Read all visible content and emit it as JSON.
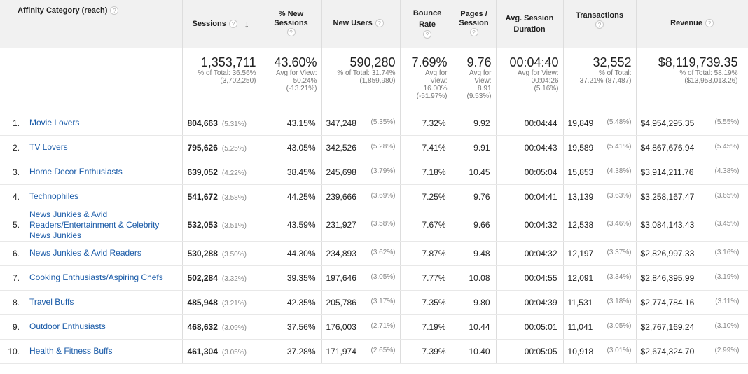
{
  "headers": {
    "category": "Affinity Category (reach)",
    "sessions": "Sessions",
    "new_sessions_pct": "% New Sessions",
    "new_users": "New Users",
    "bounce_rate": "Bounce Rate",
    "pages_session": "Pages / Session",
    "avg_session_duration": "Avg. Session Duration",
    "transactions": "Transactions",
    "revenue": "Revenue",
    "help_glyph": "?",
    "sort_glyph": "↓"
  },
  "totals": {
    "sessions": {
      "value": "1,353,711",
      "sub1": "% of Total: 36.56%",
      "sub2": "(3,702,250)"
    },
    "new_sessions_pct": {
      "value": "43.60%",
      "sub1": "Avg for View:",
      "sub2": "50.24%",
      "sub3": "(-13.21%)"
    },
    "new_users": {
      "value": "590,280",
      "sub1": "% of Total: 31.74%",
      "sub2": "(1,859,980)"
    },
    "bounce_rate": {
      "value": "7.69%",
      "sub1": "Avg for",
      "sub2": "View:",
      "sub3": "16.00%",
      "sub4": "(-51.97%)"
    },
    "pages_session": {
      "value": "9.76",
      "sub1": "Avg for",
      "sub2": "View:",
      "sub3": "8.91",
      "sub4": "(9.53%)"
    },
    "avg_session_duration": {
      "value": "00:04:40",
      "sub1": "Avg for View:",
      "sub2": "00:04:26",
      "sub3": "(5.16%)"
    },
    "transactions": {
      "value": "32,552",
      "sub1": "% of Total:",
      "sub2": "37.21% (87,487)"
    },
    "revenue": {
      "value": "$8,119,739.35",
      "sub1": "% of Total: 58.19%",
      "sub2": "($13,953,013.26)"
    }
  },
  "rows": [
    {
      "idx": "1.",
      "name": "Movie Lovers",
      "sessions": "804,663",
      "sessions_pct": "(5.31%)",
      "new_sessions": "43.15%",
      "new_users": "347,248",
      "new_users_pct": "(5.35%)",
      "bounce": "7.32%",
      "pages": "9.92",
      "duration": "00:04:44",
      "transactions": "19,849",
      "transactions_pct": "(5.48%)",
      "revenue": "$4,954,295.35",
      "revenue_pct": "(5.55%)"
    },
    {
      "idx": "2.",
      "name": "TV Lovers",
      "sessions": "795,626",
      "sessions_pct": "(5.25%)",
      "new_sessions": "43.05%",
      "new_users": "342,526",
      "new_users_pct": "(5.28%)",
      "bounce": "7.41%",
      "pages": "9.91",
      "duration": "00:04:43",
      "transactions": "19,589",
      "transactions_pct": "(5.41%)",
      "revenue": "$4,867,676.94",
      "revenue_pct": "(5.45%)"
    },
    {
      "idx": "3.",
      "name": "Home Decor Enthusiasts",
      "sessions": "639,052",
      "sessions_pct": "(4.22%)",
      "new_sessions": "38.45%",
      "new_users": "245,698",
      "new_users_pct": "(3.79%)",
      "bounce": "7.18%",
      "pages": "10.45",
      "duration": "00:05:04",
      "transactions": "15,853",
      "transactions_pct": "(4.38%)",
      "revenue": "$3,914,211.76",
      "revenue_pct": "(4.38%)"
    },
    {
      "idx": "4.",
      "name": "Technophiles",
      "sessions": "541,672",
      "sessions_pct": "(3.58%)",
      "new_sessions": "44.25%",
      "new_users": "239,666",
      "new_users_pct": "(3.69%)",
      "bounce": "7.25%",
      "pages": "9.76",
      "duration": "00:04:41",
      "transactions": "13,139",
      "transactions_pct": "(3.63%)",
      "revenue": "$3,258,167.47",
      "revenue_pct": "(3.65%)"
    },
    {
      "idx": "5.",
      "name": "News Junkies & Avid Readers/Entertainment & Celebrity News Junkies",
      "sessions": "532,053",
      "sessions_pct": "(3.51%)",
      "new_sessions": "43.59%",
      "new_users": "231,927",
      "new_users_pct": "(3.58%)",
      "bounce": "7.67%",
      "pages": "9.66",
      "duration": "00:04:32",
      "transactions": "12,538",
      "transactions_pct": "(3.46%)",
      "revenue": "$3,084,143.43",
      "revenue_pct": "(3.45%)"
    },
    {
      "idx": "6.",
      "name": "News Junkies & Avid Readers",
      "sessions": "530,288",
      "sessions_pct": "(3.50%)",
      "new_sessions": "44.30%",
      "new_users": "234,893",
      "new_users_pct": "(3.62%)",
      "bounce": "7.87%",
      "pages": "9.48",
      "duration": "00:04:32",
      "transactions": "12,197",
      "transactions_pct": "(3.37%)",
      "revenue": "$2,826,997.33",
      "revenue_pct": "(3.16%)"
    },
    {
      "idx": "7.",
      "name": "Cooking Enthusiasts/Aspiring Chefs",
      "sessions": "502,284",
      "sessions_pct": "(3.32%)",
      "new_sessions": "39.35%",
      "new_users": "197,646",
      "new_users_pct": "(3.05%)",
      "bounce": "7.77%",
      "pages": "10.08",
      "duration": "00:04:55",
      "transactions": "12,091",
      "transactions_pct": "(3.34%)",
      "revenue": "$2,846,395.99",
      "revenue_pct": "(3.19%)"
    },
    {
      "idx": "8.",
      "name": "Travel Buffs",
      "sessions": "485,948",
      "sessions_pct": "(3.21%)",
      "new_sessions": "42.35%",
      "new_users": "205,786",
      "new_users_pct": "(3.17%)",
      "bounce": "7.35%",
      "pages": "9.80",
      "duration": "00:04:39",
      "transactions": "11,531",
      "transactions_pct": "(3.18%)",
      "revenue": "$2,774,784.16",
      "revenue_pct": "(3.11%)"
    },
    {
      "idx": "9.",
      "name": "Outdoor Enthusiasts",
      "sessions": "468,632",
      "sessions_pct": "(3.09%)",
      "new_sessions": "37.56%",
      "new_users": "176,003",
      "new_users_pct": "(2.71%)",
      "bounce": "7.19%",
      "pages": "10.44",
      "duration": "00:05:01",
      "transactions": "11,041",
      "transactions_pct": "(3.05%)",
      "revenue": "$2,767,169.24",
      "revenue_pct": "(3.10%)"
    },
    {
      "idx": "10.",
      "name": "Health & Fitness Buffs",
      "sessions": "461,304",
      "sessions_pct": "(3.05%)",
      "new_sessions": "37.28%",
      "new_users": "171,974",
      "new_users_pct": "(2.65%)",
      "bounce": "7.39%",
      "pages": "10.40",
      "duration": "00:05:05",
      "transactions": "10,918",
      "transactions_pct": "(3.01%)",
      "revenue": "$2,674,324.70",
      "revenue_pct": "(2.99%)"
    }
  ]
}
